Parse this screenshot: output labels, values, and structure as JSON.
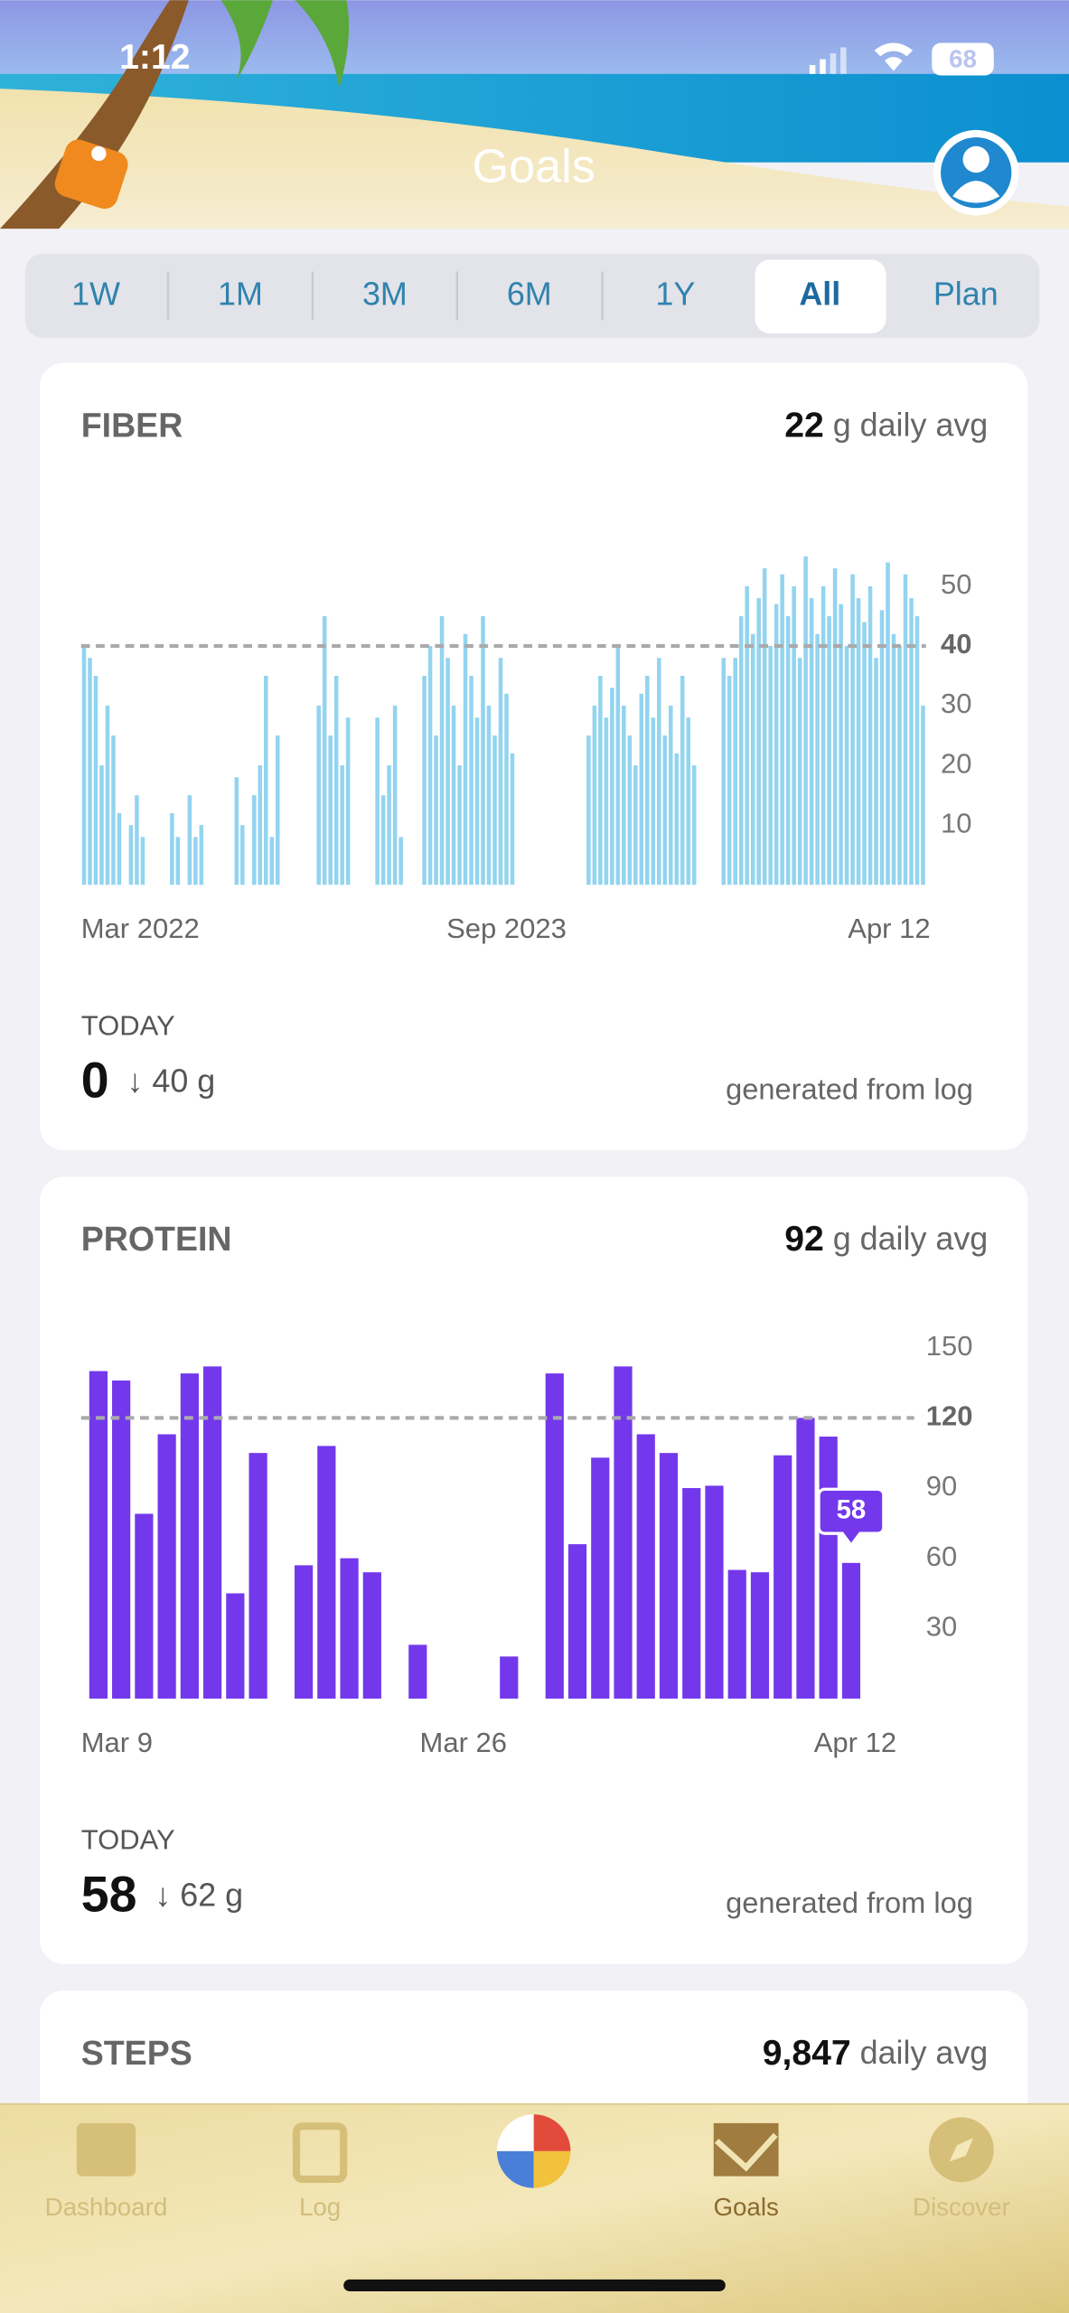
{
  "status_bar": {
    "time": "1:12",
    "battery": "68"
  },
  "header": {
    "title": "Goals"
  },
  "tabs": {
    "items": [
      "1W",
      "1M",
      "3M",
      "6M",
      "1Y",
      "All",
      "Plan"
    ],
    "selected": "All"
  },
  "cards": [
    {
      "title": "FIBER",
      "average": "22",
      "average_unit": "g daily avg",
      "today_label": "TODAY",
      "today_value": "0",
      "today_delta": "↓ 40 g",
      "source": "generated from log"
    },
    {
      "title": "PROTEIN",
      "average": "92",
      "average_unit": "g daily avg",
      "today_label": "TODAY",
      "today_value": "58",
      "today_delta": "↓ 62 g",
      "source": "generated from log"
    },
    {
      "title": "STEPS",
      "average": "9,847",
      "average_unit": "daily avg"
    }
  ],
  "chart_data": [
    {
      "type": "bar",
      "color": "#93d4ef",
      "ylim": [
        0,
        55
      ],
      "yticks": [
        10,
        20,
        30,
        50
      ],
      "goal": 40,
      "categories": [
        "Mar 2022",
        null,
        null,
        null,
        null,
        null,
        null,
        null,
        null,
        null,
        null,
        null,
        null,
        null,
        null,
        null,
        null,
        null,
        null,
        null,
        null,
        null,
        null,
        null,
        null,
        null,
        null,
        null,
        null,
        null,
        null,
        null,
        null,
        null,
        null,
        null,
        null,
        null,
        null,
        null,
        null,
        null,
        null,
        null,
        null,
        null,
        null,
        null,
        null,
        null,
        null,
        null,
        null,
        null,
        null,
        null,
        null,
        null,
        null,
        null,
        null,
        null,
        null,
        null,
        null,
        null,
        null,
        null,
        null,
        null,
        null,
        null,
        "Sep 2023",
        null,
        null,
        null,
        null,
        null,
        null,
        null,
        null,
        null,
        null,
        null,
        null,
        null,
        null,
        null,
        null,
        null,
        null,
        null,
        null,
        null,
        null,
        null,
        null,
        null,
        null,
        null,
        null,
        null,
        null,
        null,
        null,
        null,
        null,
        null,
        null,
        null,
        null,
        null,
        null,
        null,
        null,
        null,
        null,
        null,
        null,
        null,
        null,
        null,
        null,
        null,
        null,
        null,
        null,
        null,
        null,
        null,
        null,
        null,
        null,
        null,
        null,
        null,
        null,
        null,
        null,
        null,
        null,
        null,
        null,
        "Apr 12"
      ],
      "values": [
        40,
        38,
        35,
        20,
        30,
        25,
        12,
        0,
        10,
        15,
        8,
        0,
        0,
        0,
        0,
        12,
        8,
        0,
        15,
        8,
        10,
        0,
        0,
        0,
        0,
        0,
        18,
        10,
        0,
        15,
        20,
        35,
        8,
        25,
        0,
        0,
        0,
        0,
        0,
        0,
        30,
        45,
        25,
        35,
        20,
        28,
        0,
        0,
        0,
        0,
        28,
        15,
        20,
        30,
        8,
        0,
        0,
        0,
        35,
        40,
        25,
        45,
        38,
        30,
        20,
        42,
        35,
        28,
        45,
        30,
        25,
        38,
        32,
        22,
        0,
        0,
        0,
        0,
        0,
        0,
        0,
        0,
        0,
        0,
        0,
        0,
        25,
        30,
        35,
        28,
        33,
        40,
        30,
        25,
        20,
        32,
        35,
        28,
        38,
        25,
        30,
        22,
        35,
        28,
        20,
        0,
        0,
        0,
        0,
        38,
        35,
        38,
        45,
        50,
        42,
        48,
        53,
        40,
        47,
        52,
        45,
        50,
        38,
        55,
        48,
        42,
        50,
        45,
        53,
        47,
        40,
        52,
        48,
        44,
        50,
        38,
        46,
        54,
        42,
        40,
        52,
        48,
        45,
        30
      ]
    },
    {
      "type": "bar",
      "color": "#7338ec",
      "ylim": [
        0,
        150
      ],
      "yticks": [
        30,
        60,
        90,
        150
      ],
      "goal": 120,
      "categories": [
        "Mar 9",
        null,
        null,
        null,
        null,
        null,
        null,
        null,
        null,
        null,
        null,
        null,
        null,
        null,
        null,
        null,
        "Mar 26",
        null,
        null,
        null,
        null,
        null,
        null,
        null,
        null,
        null,
        null,
        null,
        null,
        null,
        null,
        null,
        null,
        "Apr 12"
      ],
      "values": [
        140,
        136,
        79,
        113,
        139,
        142,
        45,
        105,
        0,
        57,
        108,
        60,
        54,
        0,
        23,
        0,
        0,
        0,
        18,
        0,
        139,
        66,
        103,
        142,
        113,
        105,
        90,
        91,
        55,
        54,
        104,
        120,
        112,
        58
      ]
    }
  ],
  "nav": {
    "items": [
      "Dashboard",
      "Log",
      "Goals",
      "Discover"
    ],
    "selected": "Goals"
  }
}
